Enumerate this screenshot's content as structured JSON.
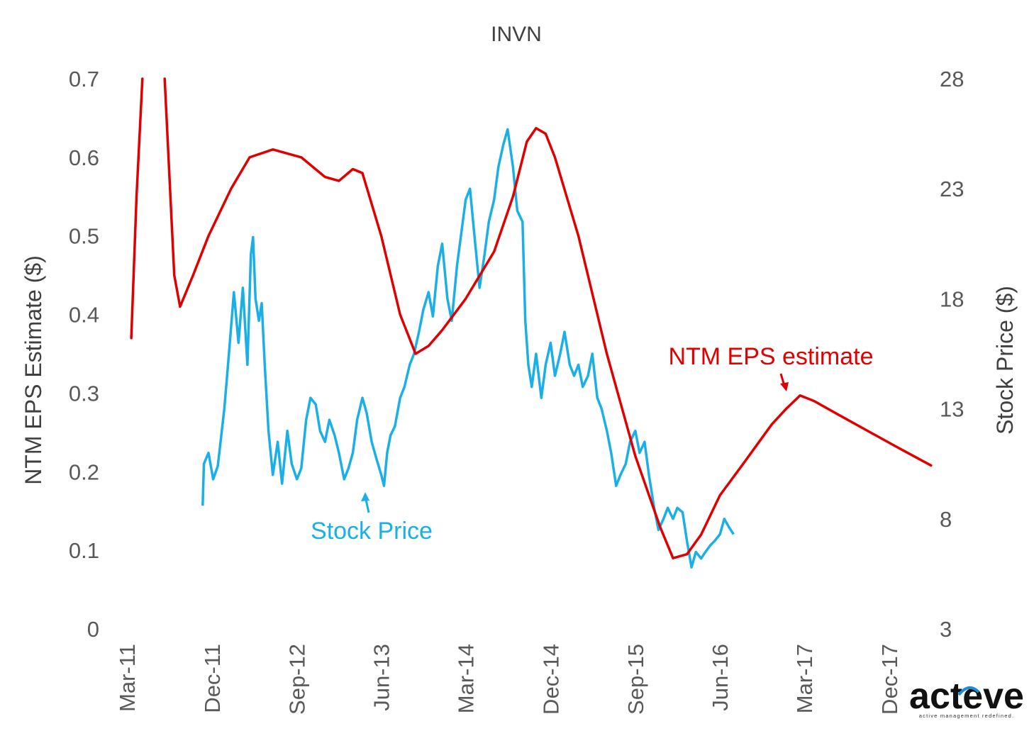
{
  "chart_data": {
    "type": "line",
    "title": "INVN",
    "ylabel_left": "NTM EPS Estimate ($)",
    "ylabel_right": "Stock Price ($)",
    "ylim_left": [
      0,
      0.7
    ],
    "ylim_right": [
      3,
      28
    ],
    "yticks_left": [
      "0",
      "0.1",
      "0.2",
      "0.3",
      "0.4",
      "0.5",
      "0.6",
      "0.7"
    ],
    "yticks_right": [
      "3",
      "8",
      "13",
      "18",
      "23",
      "28"
    ],
    "xticks": [
      "Mar-11",
      "Dec-11",
      "Sep-12",
      "Jun-13",
      "Mar-14",
      "Dec-14",
      "Sep-15",
      "Jun-16",
      "Mar-17",
      "Dec-17"
    ],
    "xlim": [
      "2011-03",
      "2018-06"
    ],
    "grid": false,
    "legend": "none",
    "annotations": [
      {
        "text": "Stock Price",
        "color": "#1aafe6"
      },
      {
        "text": "NTM EPS estimate",
        "color": "#e00000"
      }
    ],
    "series": [
      {
        "name": "NTM EPS estimate",
        "axis": "left",
        "color": "#e00000",
        "segments": [
          [
            [
              "2011-03-15",
              0.37
            ],
            [
              "2011-04-01",
              0.55
            ],
            [
              "2011-04-20",
              0.7
            ]
          ],
          [
            [
              "2011-07-01",
              0.7
            ],
            [
              "2011-08-01",
              0.45
            ],
            [
              "2011-08-20",
              0.41
            ],
            [
              "2011-10-01",
              0.45
            ],
            [
              "2011-11-20",
              0.5
            ],
            [
              "2012-02-01",
              0.56
            ],
            [
              "2012-04-01",
              0.6
            ],
            [
              "2012-06-15",
              0.61
            ],
            [
              "2012-09-15",
              0.6
            ],
            [
              "2012-12-01",
              0.575
            ],
            [
              "2013-01-15",
              0.57
            ],
            [
              "2013-03-01",
              0.585
            ],
            [
              "2013-04-01",
              0.58
            ],
            [
              "2013-06-01",
              0.5
            ],
            [
              "2013-08-01",
              0.4
            ],
            [
              "2013-09-20",
              0.35
            ],
            [
              "2013-11-01",
              0.36
            ],
            [
              "2013-12-15",
              0.38
            ],
            [
              "2014-03-01",
              0.42
            ],
            [
              "2014-06-01",
              0.48
            ],
            [
              "2014-08-01",
              0.55
            ],
            [
              "2014-09-15",
              0.62
            ],
            [
              "2014-10-15",
              0.637
            ],
            [
              "2014-11-15",
              0.63
            ],
            [
              "2014-12-15",
              0.6
            ],
            [
              "2015-03-01",
              0.5
            ],
            [
              "2015-06-01",
              0.35
            ],
            [
              "2015-09-01",
              0.22
            ],
            [
              "2015-11-20",
              0.13
            ],
            [
              "2016-01-01",
              0.09
            ],
            [
              "2016-02-15",
              0.095
            ],
            [
              "2016-04-01",
              0.12
            ],
            [
              "2016-06-01",
              0.17
            ],
            [
              "2016-08-15",
              0.21
            ],
            [
              "2016-11-15",
              0.26
            ],
            [
              "2017-01-01",
              0.28
            ],
            [
              "2017-02-15",
              0.297
            ],
            [
              "2017-04-01",
              0.29
            ],
            [
              "2017-07-01",
              0.27
            ],
            [
              "2017-10-01",
              0.25
            ],
            [
              "2018-01-01",
              0.23
            ],
            [
              "2018-04-15",
              0.208
            ]
          ]
        ]
      },
      {
        "name": "Stock Price",
        "axis": "right",
        "color": "#1aafe6",
        "points": [
          [
            "2011-11-01",
            8.6
          ],
          [
            "2011-11-05",
            10.5
          ],
          [
            "2011-11-20",
            11.0
          ],
          [
            "2011-12-05",
            9.8
          ],
          [
            "2011-12-20",
            10.4
          ],
          [
            "2012-01-10",
            13.0
          ],
          [
            "2012-01-25",
            15.5
          ],
          [
            "2012-02-10",
            18.3
          ],
          [
            "2012-02-25",
            16.0
          ],
          [
            "2012-03-10",
            18.5
          ],
          [
            "2012-03-25",
            15.0
          ],
          [
            "2012-04-05",
            20.0
          ],
          [
            "2012-04-12",
            20.8
          ],
          [
            "2012-04-20",
            18.0
          ],
          [
            "2012-05-01",
            17.0
          ],
          [
            "2012-05-10",
            17.8
          ],
          [
            "2012-05-20",
            15.0
          ],
          [
            "2012-06-01",
            12.0
          ],
          [
            "2012-06-15",
            10.0
          ],
          [
            "2012-07-01",
            11.5
          ],
          [
            "2012-07-15",
            9.6
          ],
          [
            "2012-08-01",
            12.0
          ],
          [
            "2012-08-15",
            10.5
          ],
          [
            "2012-09-01",
            9.8
          ],
          [
            "2012-09-15",
            10.3
          ],
          [
            "2012-10-01",
            12.5
          ],
          [
            "2012-10-15",
            13.5
          ],
          [
            "2012-11-01",
            13.2
          ],
          [
            "2012-11-15",
            12.0
          ],
          [
            "2012-12-01",
            11.5
          ],
          [
            "2012-12-15",
            12.5
          ],
          [
            "2013-01-01",
            11.8
          ],
          [
            "2013-01-15",
            11.0
          ],
          [
            "2013-02-01",
            9.8
          ],
          [
            "2013-02-15",
            10.3
          ],
          [
            "2013-03-01",
            11.0
          ],
          [
            "2013-03-15",
            12.5
          ],
          [
            "2013-04-01",
            13.5
          ],
          [
            "2013-04-15",
            12.8
          ],
          [
            "2013-05-01",
            11.5
          ],
          [
            "2013-05-15",
            10.8
          ],
          [
            "2013-06-01",
            10.0
          ],
          [
            "2013-06-10",
            9.5
          ],
          [
            "2013-06-20",
            11.0
          ],
          [
            "2013-07-01",
            11.8
          ],
          [
            "2013-07-15",
            12.2
          ],
          [
            "2013-08-01",
            13.5
          ],
          [
            "2013-08-15",
            14.0
          ],
          [
            "2013-09-01",
            15.0
          ],
          [
            "2013-09-15",
            15.5
          ],
          [
            "2013-10-01",
            16.5
          ],
          [
            "2013-10-15",
            17.5
          ],
          [
            "2013-11-01",
            18.3
          ],
          [
            "2013-11-15",
            17.2
          ],
          [
            "2013-12-01",
            19.5
          ],
          [
            "2013-12-15",
            20.5
          ],
          [
            "2014-01-01",
            18.0
          ],
          [
            "2014-01-15",
            17.0
          ],
          [
            "2014-02-01",
            19.5
          ],
          [
            "2014-02-15",
            21.0
          ],
          [
            "2014-03-01",
            22.5
          ],
          [
            "2014-03-15",
            23.0
          ],
          [
            "2014-04-01",
            20.5
          ],
          [
            "2014-04-15",
            18.5
          ],
          [
            "2014-05-01",
            20.0
          ],
          [
            "2014-05-15",
            21.5
          ],
          [
            "2014-06-01",
            22.5
          ],
          [
            "2014-06-15",
            24.0
          ],
          [
            "2014-07-01",
            25.0
          ],
          [
            "2014-07-15",
            25.7
          ],
          [
            "2014-08-01",
            24.0
          ],
          [
            "2014-08-15",
            22.0
          ],
          [
            "2014-09-01",
            21.5
          ],
          [
            "2014-09-10",
            17.0
          ],
          [
            "2014-09-20",
            15.0
          ],
          [
            "2014-10-01",
            14.0
          ],
          [
            "2014-10-15",
            15.5
          ],
          [
            "2014-11-01",
            13.5
          ],
          [
            "2014-11-15",
            15.0
          ],
          [
            "2014-12-01",
            16.0
          ],
          [
            "2014-12-15",
            14.5
          ],
          [
            "2015-01-01",
            15.5
          ],
          [
            "2015-01-15",
            16.5
          ],
          [
            "2015-02-01",
            15.0
          ],
          [
            "2015-02-15",
            14.5
          ],
          [
            "2015-03-01",
            15.0
          ],
          [
            "2015-03-15",
            14.0
          ],
          [
            "2015-04-01",
            14.5
          ],
          [
            "2015-04-15",
            15.5
          ],
          [
            "2015-05-01",
            13.5
          ],
          [
            "2015-05-15",
            13.0
          ],
          [
            "2015-06-01",
            12.0
          ],
          [
            "2015-06-15",
            11.0
          ],
          [
            "2015-07-01",
            9.5
          ],
          [
            "2015-07-15",
            10.0
          ],
          [
            "2015-08-01",
            10.5
          ],
          [
            "2015-08-15",
            11.5
          ],
          [
            "2015-09-01",
            12.0
          ],
          [
            "2015-09-15",
            11.0
          ],
          [
            "2015-10-01",
            11.5
          ],
          [
            "2015-10-15",
            10.0
          ],
          [
            "2015-11-01",
            8.5
          ],
          [
            "2015-11-15",
            7.5
          ],
          [
            "2015-12-01",
            8.0
          ],
          [
            "2015-12-15",
            8.5
          ],
          [
            "2016-01-01",
            8.0
          ],
          [
            "2016-01-15",
            8.5
          ],
          [
            "2016-02-01",
            8.3
          ],
          [
            "2016-02-15",
            7.0
          ],
          [
            "2016-03-01",
            5.8
          ],
          [
            "2016-03-15",
            6.5
          ],
          [
            "2016-04-01",
            6.2
          ],
          [
            "2016-04-15",
            6.5
          ],
          [
            "2016-05-01",
            6.8
          ],
          [
            "2016-05-15",
            7.0
          ],
          [
            "2016-06-01",
            7.3
          ],
          [
            "2016-06-15",
            8.0
          ],
          [
            "2016-07-01",
            7.6
          ],
          [
            "2016-07-15",
            7.3
          ]
        ]
      }
    ]
  },
  "logo": {
    "main": "acteve",
    "tagline": "active  management  redefined.",
    "accent_color": "#1a8fd6"
  }
}
